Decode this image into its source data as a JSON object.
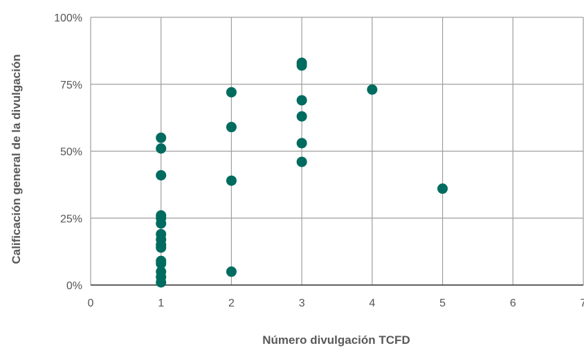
{
  "chart_data": {
    "type": "scatter",
    "title": "",
    "xlabel": "Número divulgación TCFD",
    "ylabel": "Calificación general de la divulgación",
    "xlim": [
      0,
      7
    ],
    "ylim": [
      0,
      100
    ],
    "x_ticks": [
      "0",
      "1",
      "2",
      "3",
      "4",
      "5",
      "6",
      "7"
    ],
    "y_ticks": [
      "0%",
      "25%",
      "50%",
      "75%",
      "100%"
    ],
    "grid": true,
    "legend": "none",
    "marker_color": "#006b5f",
    "points": [
      {
        "x": 1,
        "y": 55
      },
      {
        "x": 1,
        "y": 51
      },
      {
        "x": 1,
        "y": 41
      },
      {
        "x": 1,
        "y": 26
      },
      {
        "x": 1,
        "y": 25
      },
      {
        "x": 1,
        "y": 23
      },
      {
        "x": 1,
        "y": 19
      },
      {
        "x": 1,
        "y": 17
      },
      {
        "x": 1,
        "y": 15
      },
      {
        "x": 1,
        "y": 14
      },
      {
        "x": 1,
        "y": 9
      },
      {
        "x": 1,
        "y": 8
      },
      {
        "x": 1,
        "y": 5
      },
      {
        "x": 1,
        "y": 3
      },
      {
        "x": 1,
        "y": 1
      },
      {
        "x": 2,
        "y": 72
      },
      {
        "x": 2,
        "y": 59
      },
      {
        "x": 2,
        "y": 39
      },
      {
        "x": 2,
        "y": 5
      },
      {
        "x": 3,
        "y": 83
      },
      {
        "x": 3,
        "y": 82
      },
      {
        "x": 3,
        "y": 69
      },
      {
        "x": 3,
        "y": 63
      },
      {
        "x": 3,
        "y": 53
      },
      {
        "x": 3,
        "y": 46
      },
      {
        "x": 4,
        "y": 73
      },
      {
        "x": 5,
        "y": 36
      }
    ]
  }
}
